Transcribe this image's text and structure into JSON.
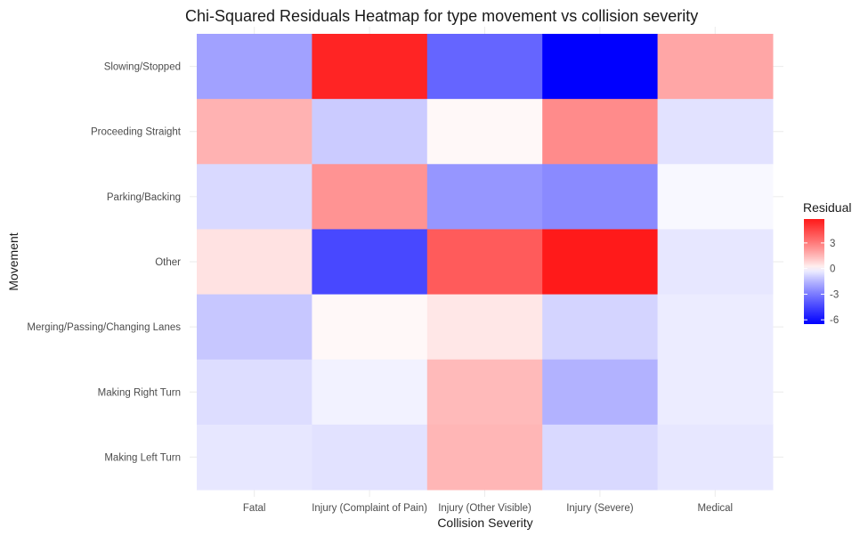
{
  "chart_data": {
    "type": "heatmap",
    "title": "Chi-Squared Residuals Heatmap for type movement vs collision severity",
    "xlabel": "Collision Severity",
    "ylabel": "Movement",
    "x_categories": [
      "Fatal",
      "Injury (Complaint of Pain)",
      "Injury (Other Visible)",
      "Injury (Severe)",
      "Medical"
    ],
    "y_categories": [
      "Slowing/Stopped",
      "Proceeding Straight",
      "Parking/Backing",
      "Other",
      "Merging/Passing/Changing Lanes",
      "Making Right Turn",
      "Making Left Turn"
    ],
    "values": [
      [
        -2.0,
        5.5,
        -3.6,
        -6.5,
        1.9
      ],
      [
        1.6,
        -1.0,
        0.1,
        2.6,
        -0.5
      ],
      [
        -0.7,
        2.4,
        -2.3,
        -2.6,
        -0.1
      ],
      [
        0.5,
        -4.4,
        3.9,
        5.8,
        -0.4
      ],
      [
        -1.1,
        0.1,
        0.4,
        -0.8,
        -0.3
      ],
      [
        -0.6,
        -0.2,
        1.4,
        -1.6,
        -0.3
      ],
      [
        -0.4,
        -0.5,
        1.5,
        -0.7,
        -0.4
      ]
    ],
    "colors": {
      "low": "#0000ff",
      "mid": "#ffffff",
      "high": "#ff0000"
    },
    "legend": {
      "title": "Residual",
      "placement": "right",
      "breaks": [
        3,
        0,
        -3,
        -6
      ],
      "break_labels": [
        "3",
        "0",
        "-3",
        "-6"
      ],
      "range": [
        -6.5,
        5.8
      ]
    }
  }
}
